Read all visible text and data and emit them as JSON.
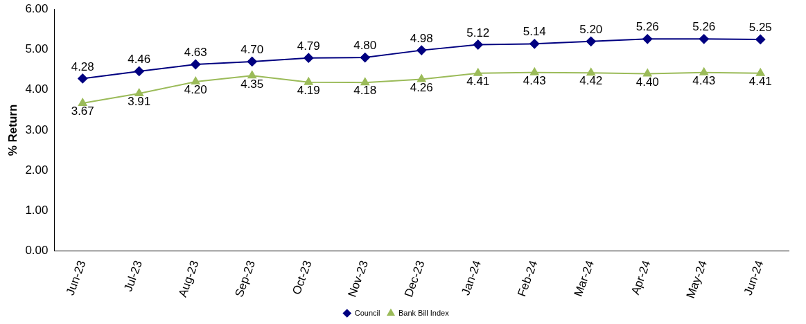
{
  "chart_data": {
    "type": "line",
    "ylabel": "% Return",
    "categories": [
      "Jun-23",
      "Jul-23",
      "Aug-23",
      "Sep-23",
      "Oct-23",
      "Nov-23",
      "Dec-23",
      "Jan-24",
      "Feb-24",
      "Mar-24",
      "Apr-24",
      "May-24",
      "Jun-24"
    ],
    "series": [
      {
        "name": "Council",
        "color": "#000080",
        "marker": "diamond",
        "values": [
          4.28,
          4.46,
          4.63,
          4.7,
          4.79,
          4.8,
          4.98,
          5.12,
          5.14,
          5.2,
          5.26,
          5.26,
          5.25
        ],
        "value_labels": [
          "4.28",
          "4.46",
          "4.63",
          "4.70",
          "4.79",
          "4.80",
          "4.98",
          "5.12",
          "5.14",
          "5.20",
          "5.26",
          "5.26",
          "5.25"
        ]
      },
      {
        "name": "Bank Bill Index",
        "color": "#9bbb59",
        "marker": "triangle",
        "values": [
          3.67,
          3.91,
          4.2,
          4.35,
          4.19,
          4.18,
          4.26,
          4.41,
          4.43,
          4.42,
          4.4,
          4.43,
          4.41
        ],
        "value_labels": [
          "3.67",
          "3.91",
          "4.20",
          "4.35",
          "4.19",
          "4.18",
          "4.26",
          "4.41",
          "4.43",
          "4.42",
          "4.40",
          "4.43",
          "4.41"
        ]
      }
    ],
    "ylim": [
      0,
      6
    ],
    "yticks": [
      {
        "value": 0,
        "label": "0.00"
      },
      {
        "value": 1,
        "label": "1.00"
      },
      {
        "value": 2,
        "label": "2.00"
      },
      {
        "value": 3,
        "label": "3.00"
      },
      {
        "value": 4,
        "label": "4.00"
      },
      {
        "value": 5,
        "label": "5.00"
      },
      {
        "value": 6,
        "label": "6.00"
      }
    ],
    "grid": false,
    "legend": "bottom",
    "line_style": "solid"
  }
}
